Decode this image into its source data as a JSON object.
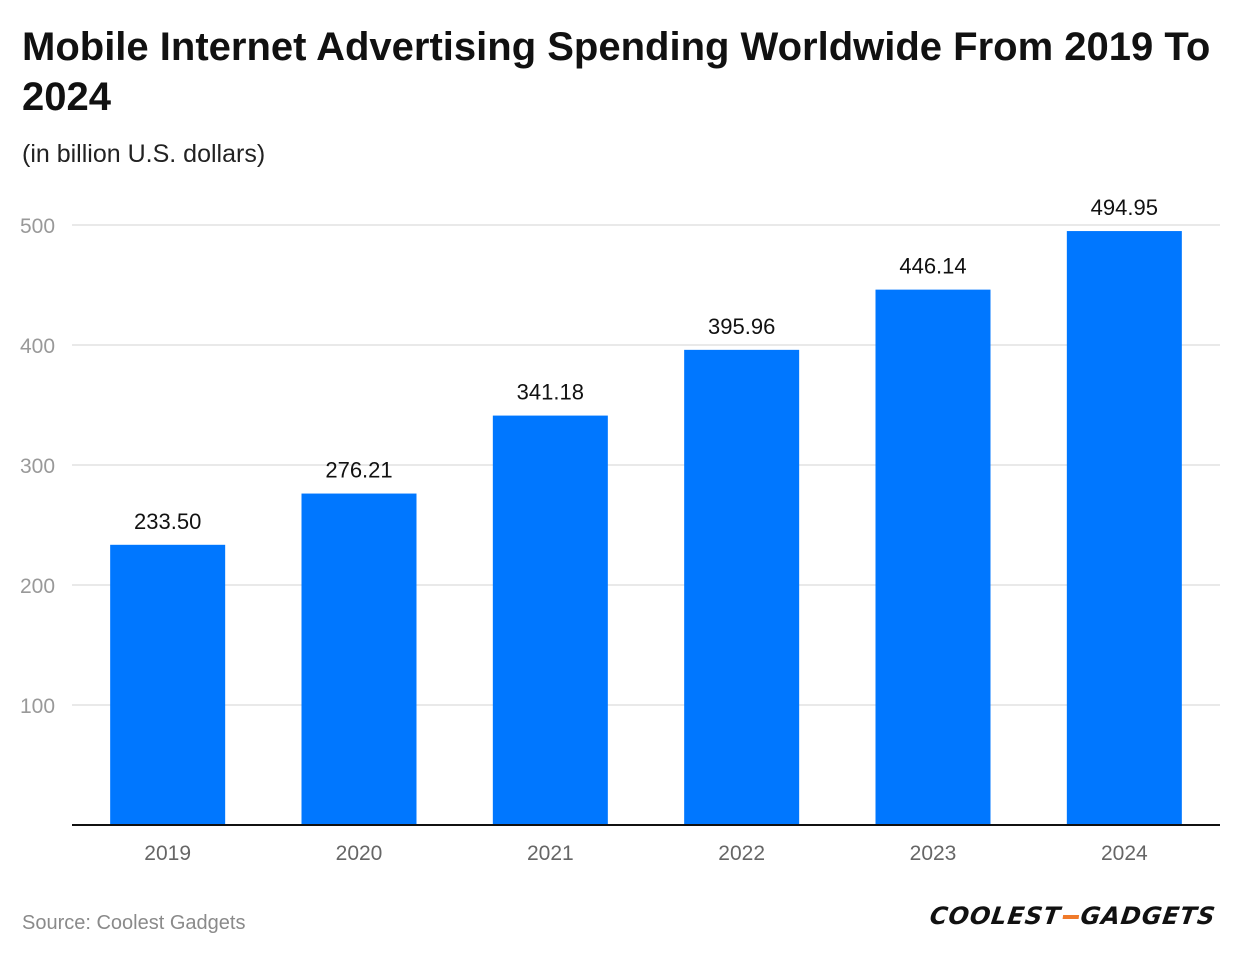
{
  "chart_data": {
    "type": "bar",
    "title": "Mobile Internet Advertising Spending Worldwide From 2019 To 2024",
    "subtitle": "(in billion U.S. dollars)",
    "categories": [
      "2019",
      "2020",
      "2021",
      "2022",
      "2023",
      "2024"
    ],
    "values": [
      233.5,
      276.21,
      341.18,
      395.96,
      446.14,
      494.95
    ],
    "value_labels": [
      "233.50",
      "276.21",
      "341.18",
      "395.96",
      "446.14",
      "494.95"
    ],
    "yticks": [
      100,
      200,
      300,
      400,
      500
    ],
    "ylim": [
      0,
      500
    ],
    "xlabel": "",
    "ylabel": "",
    "grid": true,
    "bar_color": "#0077ff"
  },
  "footer": {
    "source": "Source: Coolest Gadgets",
    "logo_left": "COOLEST",
    "logo_right": "GADGETS"
  },
  "colors": {
    "bar": "#0077ff",
    "logo_accent": "#f07a2a"
  }
}
